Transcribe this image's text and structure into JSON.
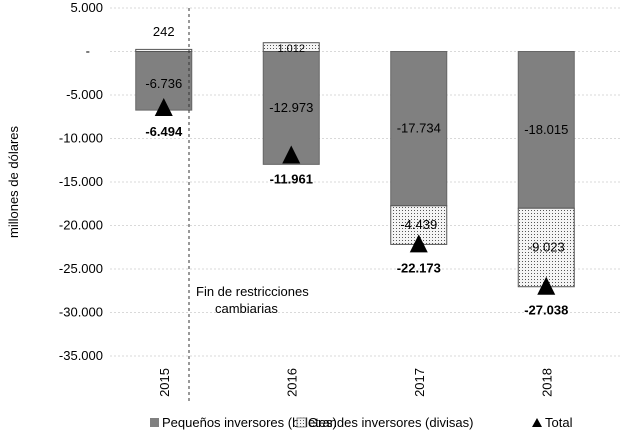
{
  "chart_data": {
    "type": "bar",
    "stacked": true,
    "categories": [
      "2015",
      "2016",
      "2017",
      "2018"
    ],
    "series": [
      {
        "name": "Pequeños inversores (billetes)",
        "values": [
          -6736,
          -12973,
          -17734,
          -18015
        ],
        "labels": [
          "-6.736",
          "-12.973",
          "-17.734",
          "-18.015"
        ],
        "color": "#808080"
      },
      {
        "name": "Grandes inversores (divisas)",
        "values": [
          242,
          1012,
          -4439,
          -9023
        ],
        "labels": [
          "242",
          "1.012",
          "-4.439",
          "-9.023"
        ],
        "color": "#dddddd"
      },
      {
        "name": "Total",
        "values": [
          -6494,
          -11961,
          -22173,
          -27038
        ],
        "labels": [
          "-6.494",
          "-11.961",
          "-22.173",
          "-27.038"
        ],
        "marker": "triangle"
      }
    ],
    "ylabel": "millones de dólares",
    "ylim": [
      -35000,
      5000
    ],
    "yticks": [
      5000,
      0,
      -5000,
      -10000,
      -15000,
      -20000,
      -25000,
      -30000,
      -35000
    ],
    "ytick_labels": [
      "5.000",
      "-",
      "-5.000",
      "-10.000",
      "-15.000",
      "-20.000",
      "-25.000",
      "-30.000",
      "-35.000"
    ],
    "grid": true,
    "legend": "bottom",
    "annotation": {
      "text_lines": [
        "Fin de restricciones",
        "cambiarias"
      ],
      "between": [
        "2015",
        "2016"
      ]
    }
  }
}
